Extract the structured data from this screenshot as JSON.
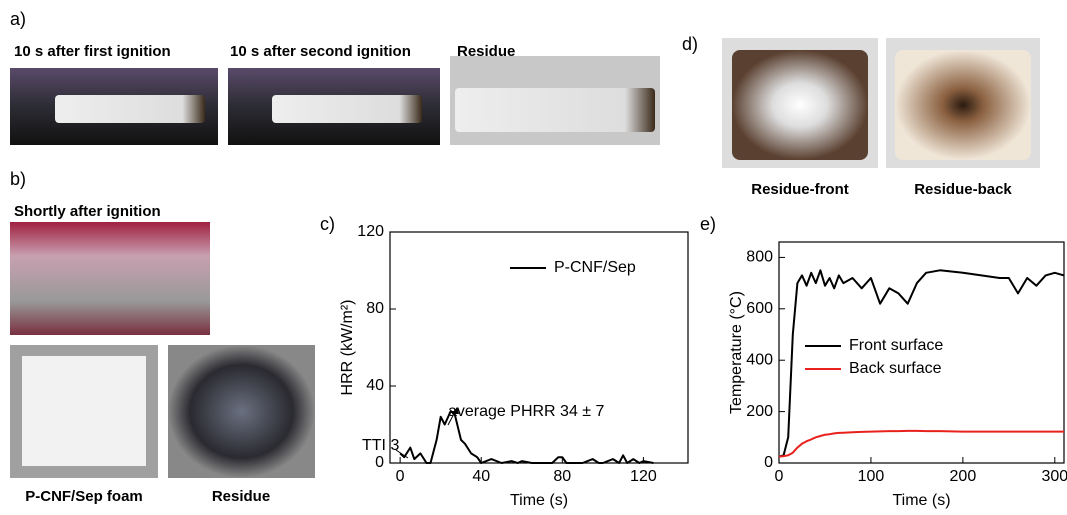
{
  "panels": {
    "a": {
      "label": "a)",
      "captions": [
        "10 s after first ignition",
        "10 s after second ignition",
        "Residue"
      ]
    },
    "b": {
      "label": "b)",
      "captions": [
        "Shortly after ignition",
        "P-CNF/Sep foam",
        "Residue"
      ]
    },
    "c": {
      "label": "c)"
    },
    "d": {
      "label": "d)",
      "captions": [
        "Residue-front",
        "Residue-back"
      ]
    },
    "e": {
      "label": "e)"
    }
  },
  "chart_data": [
    {
      "type": "line",
      "xlabel": "Time (s)",
      "ylabel": "HRR (kW/m²)",
      "xlim": [
        -5,
        142
      ],
      "ylim": [
        0,
        120
      ],
      "xticks": [
        0,
        40,
        80,
        120
      ],
      "yticks": [
        0,
        40,
        80,
        120
      ],
      "annotations": [
        "TTI 3",
        "average PHRR 34 ± 7"
      ],
      "legend": "upper right",
      "x": [
        0,
        2,
        5,
        7,
        10,
        13,
        15,
        18,
        20,
        22,
        25,
        27,
        30,
        32,
        35,
        38,
        40,
        45,
        50,
        55,
        58,
        60,
        65,
        70,
        75,
        78,
        80,
        82,
        90,
        95,
        98,
        100,
        105,
        108,
        110,
        112,
        115,
        118,
        120,
        125
      ],
      "series": [
        {
          "name": "P-CNF/Sep",
          "color": "#000000",
          "values": [
            5,
            3,
            8,
            2,
            5,
            0,
            0,
            12,
            24,
            20,
            27,
            25,
            12,
            10,
            5,
            3,
            0,
            2,
            0,
            1,
            0,
            1,
            0,
            0,
            0,
            3,
            3,
            0,
            0,
            2,
            0,
            0,
            2,
            0,
            4,
            0,
            2,
            0,
            1,
            0
          ]
        }
      ]
    },
    {
      "type": "line",
      "xlabel": "Time (s)",
      "ylabel": "Temperature (°C)",
      "xlim": [
        0,
        310
      ],
      "ylim": [
        0,
        860
      ],
      "xticks": [
        0,
        100,
        200,
        300
      ],
      "yticks": [
        0,
        200,
        400,
        600,
        800
      ],
      "legend": "center",
      "x": [
        0,
        5,
        10,
        15,
        20,
        25,
        30,
        35,
        40,
        45,
        50,
        55,
        60,
        65,
        70,
        80,
        90,
        100,
        110,
        120,
        130,
        140,
        150,
        160,
        175,
        200,
        220,
        240,
        250,
        260,
        270,
        280,
        290,
        300,
        310
      ],
      "series": [
        {
          "name": "Front surface",
          "color": "#000000",
          "values": [
            25,
            30,
            100,
            500,
            700,
            730,
            690,
            740,
            700,
            750,
            690,
            720,
            680,
            730,
            700,
            720,
            680,
            720,
            620,
            680,
            660,
            620,
            700,
            740,
            750,
            740,
            730,
            720,
            720,
            660,
            720,
            690,
            730,
            740,
            730
          ]
        },
        {
          "name": "Back surface",
          "color": "#e8211c",
          "values": [
            25,
            27,
            30,
            40,
            60,
            75,
            85,
            92,
            100,
            105,
            110,
            112,
            115,
            117,
            118,
            120,
            121,
            122,
            123,
            124,
            124,
            125,
            125,
            124,
            124,
            122,
            122,
            122,
            122,
            122,
            122,
            122,
            122,
            122,
            122
          ]
        }
      ]
    }
  ]
}
